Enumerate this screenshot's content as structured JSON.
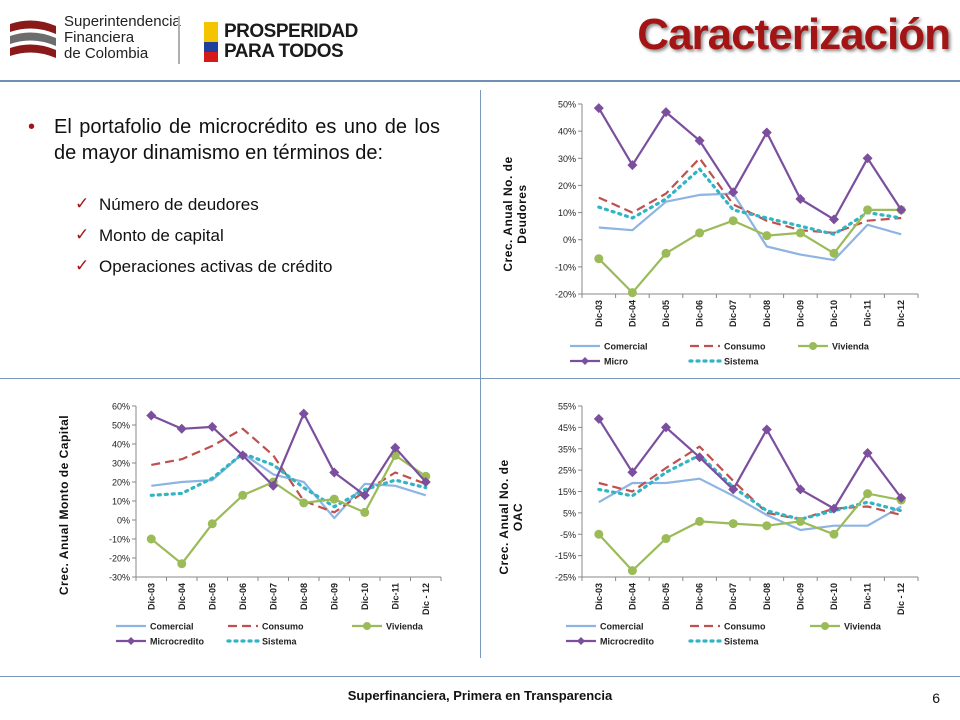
{
  "header": {
    "logo_sfc_lines": [
      "Superintendencia",
      "Financiera",
      "de Colombia"
    ],
    "logo_pros_lines": [
      "PROSPERIDAD",
      "PARA TODOS"
    ],
    "title": "Caracterización"
  },
  "content": {
    "main_bullet": "El portafolio de microcrédito es uno de los de mayor dinamismo en términos de:",
    "sub_items": [
      "Número de deudores",
      "Monto de capital",
      "Operaciones activas de crédito"
    ]
  },
  "footer": {
    "text": "Superfinanciera, Primera en Transparencia",
    "page": "6"
  },
  "colors": {
    "comercial": "#8db4e2",
    "consumo": "#c0504d",
    "vivienda": "#9bbb59",
    "micro": "#7b4f9d",
    "sistema": "#31b4c4",
    "title": "#a31515"
  },
  "chart_data": [
    {
      "type": "line",
      "ylabel": "Crec. Anual No. de Deudores",
      "categories": [
        "Dic-03",
        "Dic-04",
        "Dic-05",
        "Dic-06",
        "Dic-07",
        "Dic-08",
        "Dic-09",
        "Dic-10",
        "Dic-11",
        "Dic-12"
      ],
      "yticks": [
        -20,
        -10,
        0,
        10,
        20,
        30,
        40,
        50
      ],
      "ylim": [
        -20,
        50
      ],
      "series": [
        {
          "name": "Comercial",
          "values": [
            4.5,
            3.5,
            14,
            16.5,
            17,
            -2.5,
            -5.5,
            -7.5,
            5.5,
            2
          ]
        },
        {
          "name": "Consumo",
          "values": [
            15.5,
            10,
            17,
            30,
            13,
            7,
            3.5,
            2.5,
            7,
            8
          ]
        },
        {
          "name": "Vivienda",
          "values": [
            -7,
            -19.5,
            -5,
            2.5,
            7,
            1.5,
            2.5,
            -5,
            11,
            11
          ]
        },
        {
          "name": "Micro",
          "values": [
            48.5,
            27.5,
            47,
            36.5,
            17.5,
            39.5,
            15,
            7.5,
            30,
            11
          ]
        },
        {
          "name": "Sistema",
          "values": [
            12,
            8,
            15,
            26,
            11,
            8,
            5,
            2,
            10,
            8
          ]
        }
      ],
      "legend": [
        "Comercial",
        "Consumo",
        "Vivienda",
        "Micro",
        "Sistema"
      ]
    },
    {
      "type": "line",
      "ylabel": "Crec. Anual Monto de Capital",
      "categories": [
        "Dic-03",
        "Dic-04",
        "Dic-05",
        "Dic-06",
        "Dic-07",
        "Dic-08",
        "Dic-09",
        "Dic-10",
        "Dic-11",
        "Dic - 12"
      ],
      "yticks": [
        -30,
        -20,
        -10,
        0,
        10,
        20,
        30,
        40,
        50,
        60
      ],
      "ylim": [
        -30,
        60
      ],
      "series": [
        {
          "name": "Comercial",
          "values": [
            18,
            20,
            21,
            35,
            24,
            20,
            1,
            19,
            18,
            13
          ]
        },
        {
          "name": "Consumo",
          "values": [
            29,
            32,
            39,
            48,
            34,
            10,
            4,
            15,
            25,
            19
          ]
        },
        {
          "name": "Vivienda",
          "values": [
            -10,
            -23,
            -2,
            13,
            20,
            9,
            11,
            4,
            34,
            23
          ]
        },
        {
          "name": "Microcredito",
          "values": [
            55,
            48,
            49,
            34,
            18,
            56,
            25,
            13,
            38,
            20
          ]
        },
        {
          "name": "Sistema",
          "values": [
            13,
            14,
            22,
            35,
            29,
            17,
            7,
            16,
            21,
            17
          ]
        }
      ],
      "legend": [
        "Comercial",
        "Consumo",
        "Vivienda",
        "Microcredito",
        "Sistema"
      ]
    },
    {
      "type": "line",
      "ylabel": "Crec. Anual No. de OAC",
      "categories": [
        "Dic-03",
        "Dic-04",
        "Dic-05",
        "Dic-06",
        "Dic-07",
        "Dic-08",
        "Dic-09",
        "Dic-10",
        "Dic-11",
        "Dic - 12"
      ],
      "yticks": [
        -25,
        -15,
        -5,
        5,
        15,
        25,
        35,
        45,
        55
      ],
      "ylim": [
        -25,
        55
      ],
      "series": [
        {
          "name": "Comercial",
          "values": [
            10,
            19,
            19,
            21,
            13,
            4,
            -3,
            -1,
            -1,
            8
          ]
        },
        {
          "name": "Consumo",
          "values": [
            19,
            15,
            26,
            36,
            20,
            5,
            2,
            7,
            8,
            4
          ]
        },
        {
          "name": "Vivienda",
          "values": [
            -5,
            -22,
            -7,
            1,
            0,
            -1,
            1,
            -5,
            14,
            11
          ]
        },
        {
          "name": "Microcredito",
          "values": [
            49,
            24,
            45,
            31,
            16,
            44,
            16,
            7,
            33,
            12
          ]
        },
        {
          "name": "Sistema",
          "values": [
            16,
            13,
            24,
            32,
            17,
            6,
            2,
            6,
            10,
            6
          ]
        }
      ],
      "legend": [
        "Comercial",
        "Consumo",
        "Vivienda",
        "Microcredito",
        "Sistema"
      ]
    }
  ]
}
